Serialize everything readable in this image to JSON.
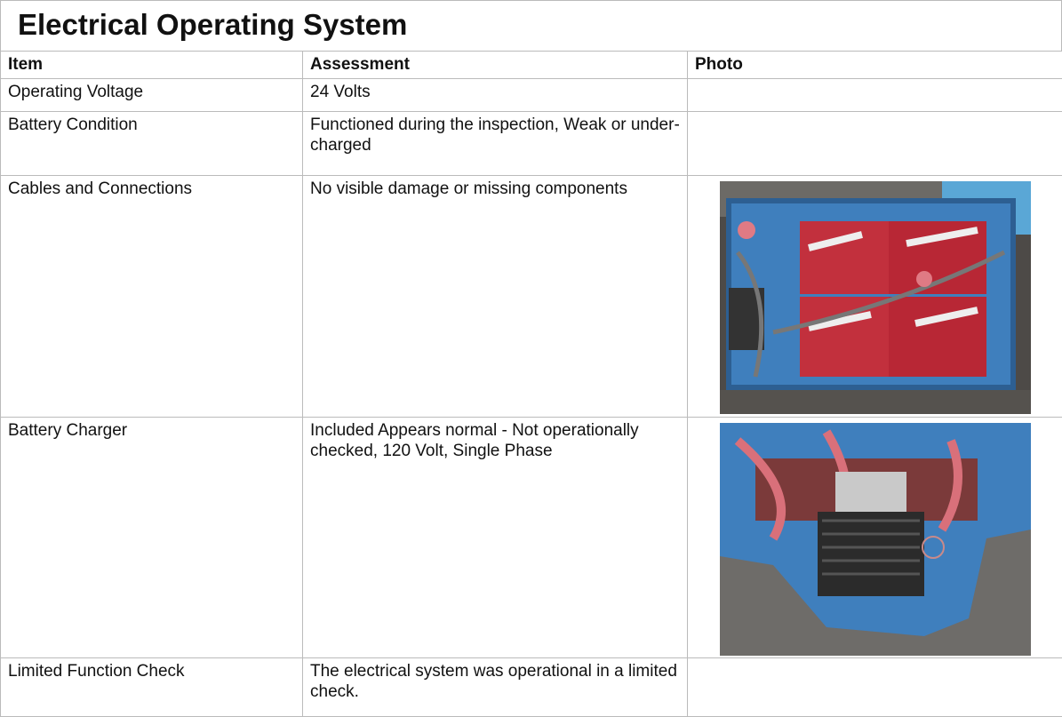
{
  "header": {
    "title": "Electrical Operating System"
  },
  "table": {
    "columns": [
      "Item",
      "Assessment",
      "Photo"
    ],
    "rows": [
      [
        "Operating Voltage",
        "24 Volts"
      ],
      [
        "Battery Condition",
        "Functioned during the inspection, Weak or under-charged"
      ],
      [
        "Cables and Connections",
        "No visible damage or missing components"
      ],
      [
        "Battery Charger",
        "Included Appears normal - Not operationally checked, 120 Volt, Single Phase"
      ],
      [
        "Limited Function Check",
        "The electrical system was operational in a limited check."
      ]
    ]
  }
}
